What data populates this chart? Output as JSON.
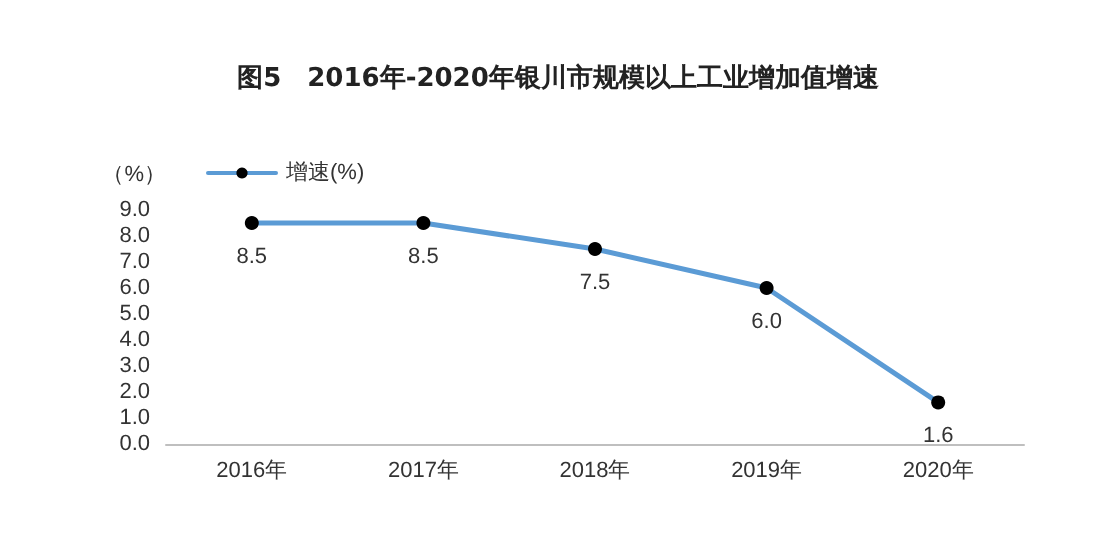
{
  "chart_data": {
    "type": "line",
    "title": "图5　2016年-2020年银川市规模以上工业增加值增速",
    "ylabel": "（%）",
    "categories": [
      "2016年",
      "2017年",
      "2018年",
      "2019年",
      "2020年"
    ],
    "series": [
      {
        "name": "增速(%)",
        "color": "#5b9bd5",
        "values": [
          8.5,
          8.5,
          7.5,
          6.0,
          1.6
        ],
        "value_labels": [
          "8.5",
          "8.5",
          "7.5",
          "6.0",
          "1.6"
        ]
      }
    ],
    "ylim": [
      0,
      9
    ],
    "yticks": [
      {
        "value": 0,
        "label": "0.0"
      },
      {
        "value": 1,
        "label": "1.0"
      },
      {
        "value": 2,
        "label": "2.0"
      },
      {
        "value": 3,
        "label": "3.0"
      },
      {
        "value": 4,
        "label": "4.0"
      },
      {
        "value": 5,
        "label": "5.0"
      },
      {
        "value": 6,
        "label": "6.0"
      },
      {
        "value": 7,
        "label": "7.0"
      },
      {
        "value": 8,
        "label": "8.0"
      },
      {
        "value": 9,
        "label": "9.0"
      }
    ],
    "grid": false,
    "legend": "top left",
    "marker": "circle",
    "line_style": "solid"
  }
}
